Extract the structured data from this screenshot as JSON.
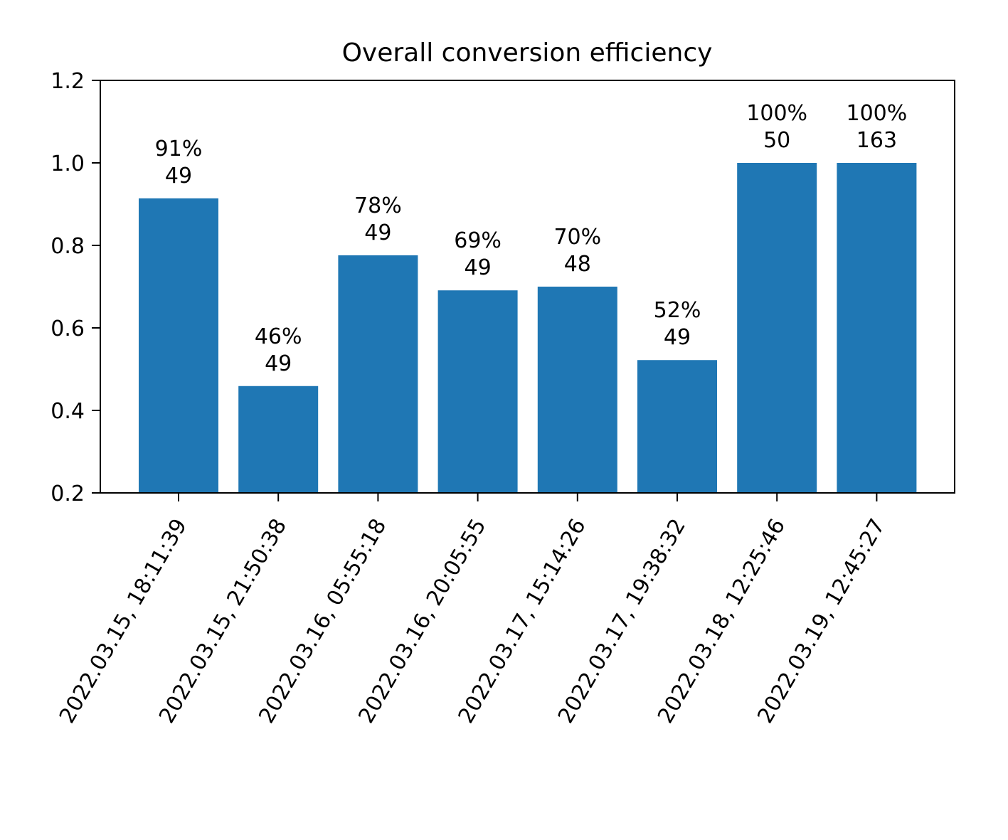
{
  "chart_data": {
    "type": "bar",
    "title": "Overall conversion efficiency",
    "xlabel": "",
    "ylabel": "",
    "ylim": [
      0.2,
      1.2
    ],
    "yticks": [
      "0.2",
      "0.4",
      "0.6",
      "0.8",
      "1.0",
      "1.2"
    ],
    "grid": false,
    "color": "#1f77b4",
    "categories": [
      "2022.03.15, 18:11:39",
      "2022.03.15, 21:50:38",
      "2022.03.16, 05:55:18",
      "2022.03.16, 20:05:55",
      "2022.03.17, 15:14:26",
      "2022.03.17, 19:38:32",
      "2022.03.18, 12:25:46",
      "2022.03.19, 12:45:27"
    ],
    "values": [
      0.914,
      0.459,
      0.776,
      0.691,
      0.7,
      0.522,
      1.0,
      1.0
    ],
    "annotations": [
      {
        "percent": "91%",
        "count": "49"
      },
      {
        "percent": "46%",
        "count": "49"
      },
      {
        "percent": "78%",
        "count": "49"
      },
      {
        "percent": "69%",
        "count": "49"
      },
      {
        "percent": "70%",
        "count": "48"
      },
      {
        "percent": "52%",
        "count": "49"
      },
      {
        "percent": "100%",
        "count": "50"
      },
      {
        "percent": "100%",
        "count": "163"
      }
    ]
  }
}
